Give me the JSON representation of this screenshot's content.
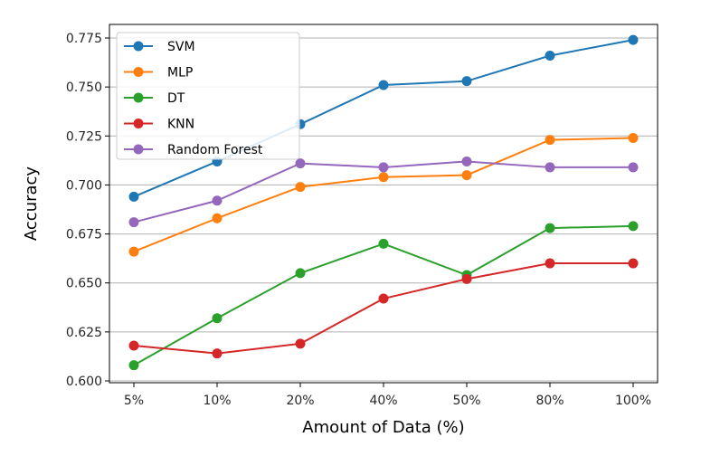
{
  "chart_data": {
    "type": "line",
    "xlabel": "Amount of Data (%)",
    "ylabel": "Accuracy",
    "categories": [
      "5%",
      "10%",
      "20%",
      "40%",
      "50%",
      "80%",
      "100%"
    ],
    "ylim": [
      0.6,
      0.775
    ],
    "yticks": [
      "0.600",
      "0.625",
      "0.650",
      "0.675",
      "0.700",
      "0.725",
      "0.750",
      "0.775"
    ],
    "grid": "horizontal",
    "legend_position": "top-left",
    "series": [
      {
        "name": "SVM",
        "color": "#1f77b4",
        "values": [
          0.694,
          0.712,
          0.731,
          0.751,
          0.753,
          0.766,
          0.774
        ]
      },
      {
        "name": "MLP",
        "color": "#ff7f0e",
        "values": [
          0.666,
          0.683,
          0.699,
          0.704,
          0.705,
          0.723,
          0.724
        ]
      },
      {
        "name": "DT",
        "color": "#2ca02c",
        "values": [
          0.608,
          0.632,
          0.655,
          0.67,
          0.654,
          0.678,
          0.679
        ]
      },
      {
        "name": "KNN",
        "color": "#d62728",
        "values": [
          0.618,
          0.614,
          0.619,
          0.642,
          0.652,
          0.66,
          0.66
        ]
      },
      {
        "name": "Random Forest",
        "color": "#9467bd",
        "values": [
          0.681,
          0.692,
          0.711,
          0.709,
          0.712,
          0.709,
          0.709
        ]
      }
    ]
  }
}
